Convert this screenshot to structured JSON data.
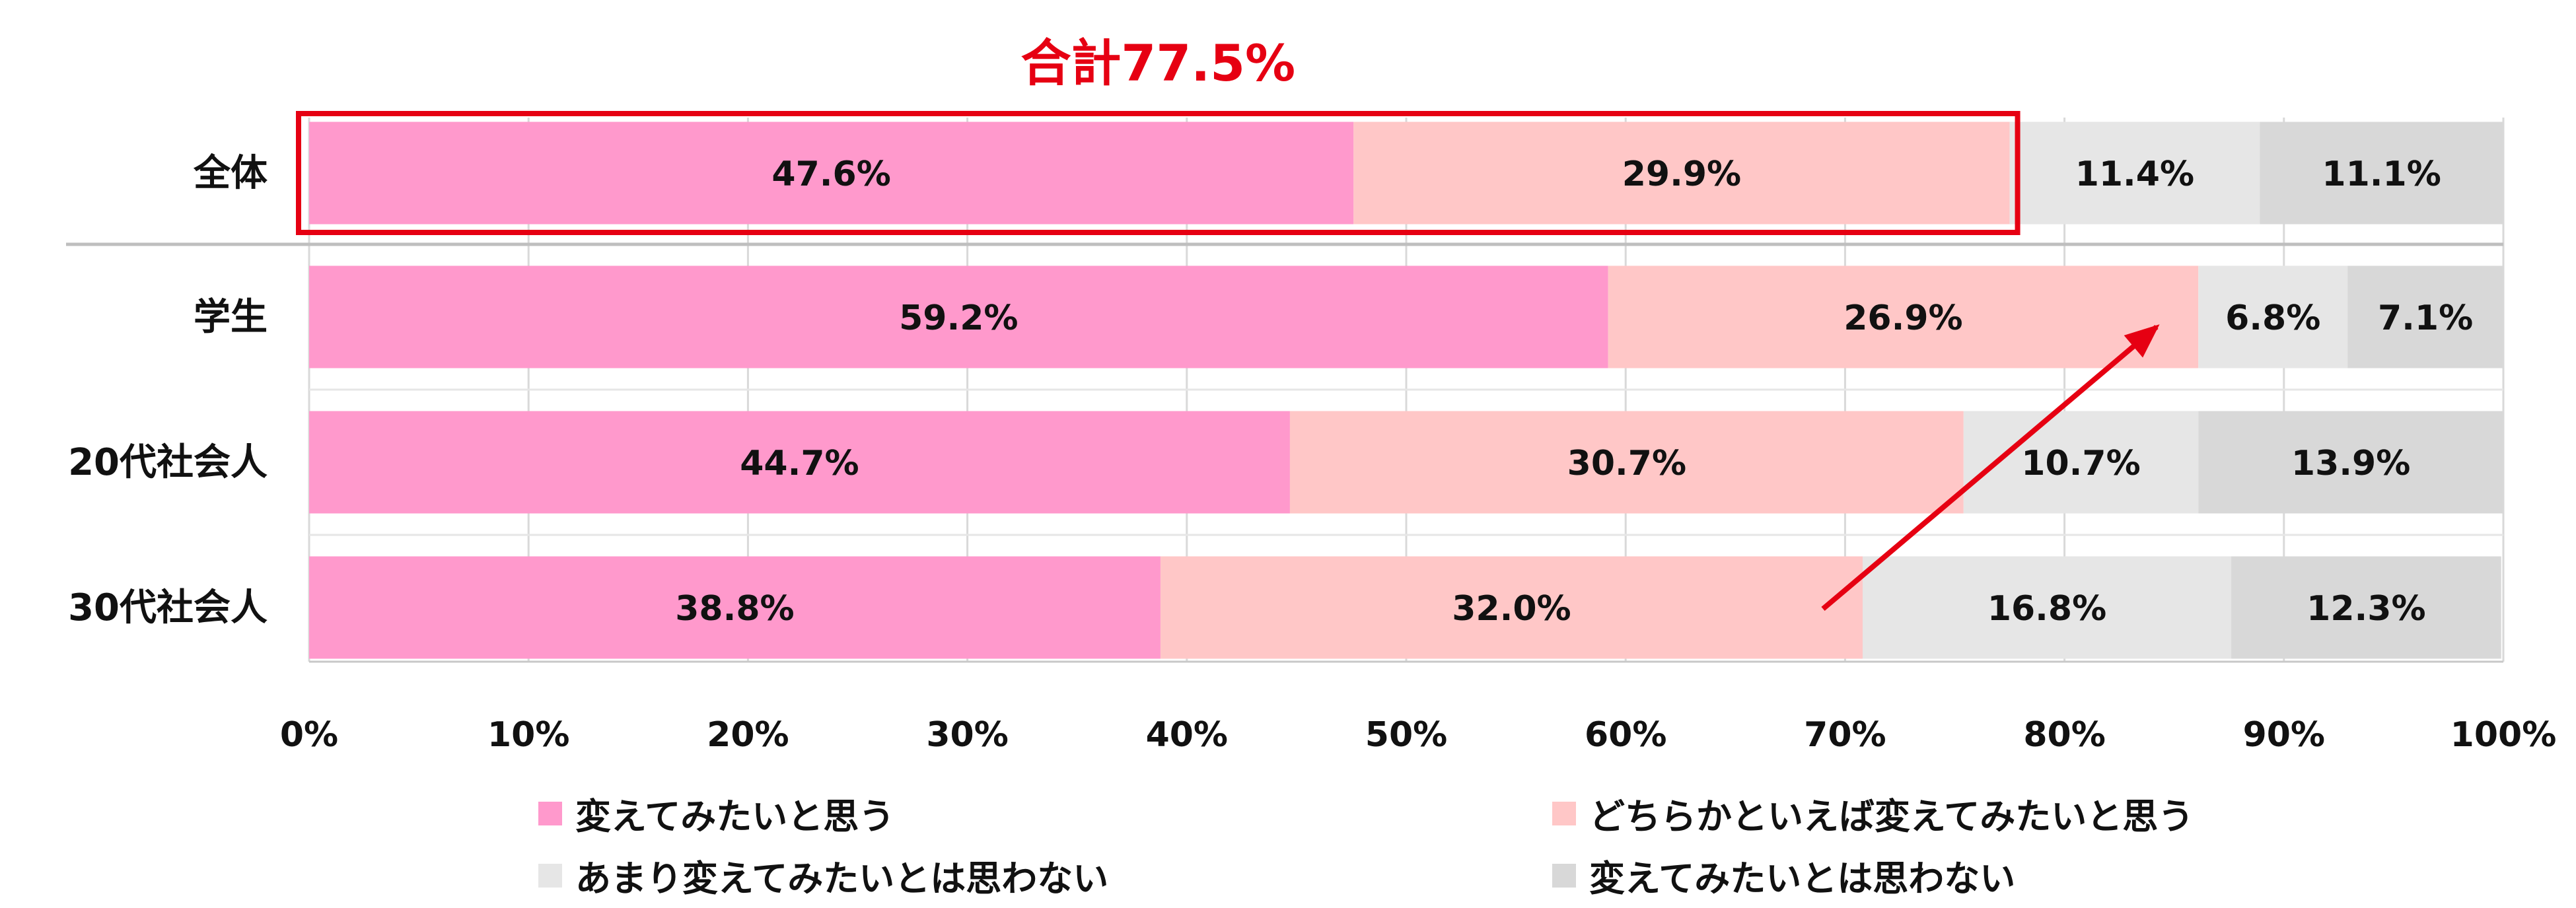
{
  "chart_data": {
    "type": "bar",
    "orientation": "horizontal",
    "stacked": true,
    "categories": [
      "全体",
      "学生",
      "20代社会人",
      "30代社会人"
    ],
    "series": [
      {
        "name": "変えてみたいと思う",
        "color": "#ff99cc",
        "values": [
          47.6,
          59.2,
          44.7,
          38.8
        ]
      },
      {
        "name": "どちらかといえば変えてみたいと思う",
        "color": "#ffc7c7",
        "values": [
          29.9,
          26.9,
          30.7,
          32.0
        ]
      },
      {
        "name": "あまり変えてみたいとは思わない",
        "color": "#e6e6e6",
        "values": [
          11.4,
          6.8,
          10.7,
          16.8
        ]
      },
      {
        "name": "変えてみたいとは思わない",
        "color": "#d8d8d8",
        "values": [
          11.1,
          7.1,
          13.9,
          12.3
        ]
      }
    ],
    "data_labels": [
      [
        "47.6%",
        "29.9%",
        "11.4%",
        "11.1%"
      ],
      [
        "59.2%",
        "26.9%",
        "6.8%",
        "7.1%"
      ],
      [
        "44.7%",
        "30.7%",
        "10.7%",
        "13.9%"
      ],
      [
        "38.8%",
        "32.0%",
        "16.8%",
        "12.3%"
      ]
    ],
    "xlim": [
      0,
      100
    ],
    "xticks": [
      "0%",
      "10%",
      "20%",
      "30%",
      "40%",
      "50%",
      "60%",
      "70%",
      "80%",
      "90%",
      "100%"
    ],
    "grid": true,
    "legend_position": "bottom",
    "annotation": {
      "text": "合計77.5%",
      "color": "#e60012",
      "highlight_category": "全体"
    },
    "arrow": {
      "from_category": "30代社会人",
      "to_category": "学生",
      "color": "#e60012"
    }
  }
}
